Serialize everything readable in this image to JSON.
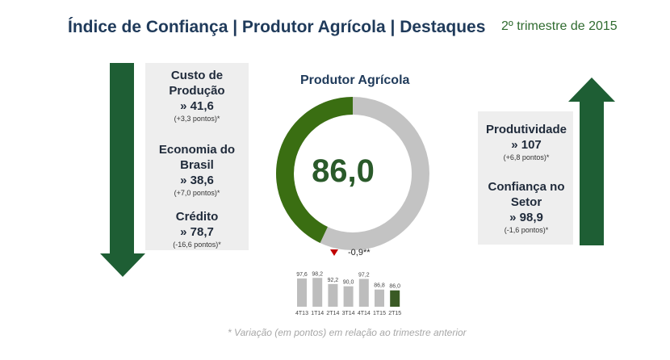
{
  "header": {
    "title": "Índice de Confiança | Produtor Agrícola | Destaques",
    "period": "2º trimestre de 2015"
  },
  "colors": {
    "dark_green": "#1e5e34",
    "gauge_green": "#3a6e12",
    "gauge_gray": "#c3c3c3",
    "panel_bg": "#eeeeee",
    "bar_gray": "#bdbdbd",
    "bar_green": "#3a5a24",
    "down_marker": "#c00000"
  },
  "left_panel": {
    "items": [
      {
        "name": "Custo de Produção",
        "value": "» 41,6",
        "change": "(+3,3 pontos)*"
      },
      {
        "name": "Economia do Brasil",
        "value": "» 38,6",
        "change": "(+7,0 pontos)*"
      },
      {
        "name": "Crédito",
        "value": "» 78,7",
        "change": "(-16,6 pontos)*"
      }
    ]
  },
  "right_panel": {
    "items": [
      {
        "name": "Produtividade",
        "value": "» 107",
        "change": "(+6,8 pontos)*"
      },
      {
        "name": "Confiança no Setor",
        "value": "» 98,9",
        "change": "(-1,6 pontos)*"
      }
    ]
  },
  "gauge": {
    "title": "Produtor Agrícola",
    "value_label": "86,0",
    "value": 86.0,
    "scale_max": 200,
    "delta": "-0,9**"
  },
  "chart_data": {
    "type": "bar",
    "categories": [
      "4T13",
      "1T14",
      "2T14",
      "3T14",
      "4T14",
      "1T15",
      "2T15"
    ],
    "values": [
      97.6,
      98.2,
      92.2,
      90.0,
      97.2,
      86.8,
      86.0
    ],
    "labels": [
      "97,6",
      "98,2",
      "92,2",
      "90,0",
      "97,2",
      "86,8",
      "86,0"
    ],
    "highlight_index": 6,
    "title": "",
    "xlabel": "",
    "ylabel": "",
    "ylim": [
      70,
      100
    ]
  },
  "footnote": "* Variação (em pontos) em relação ao trimestre anterior"
}
